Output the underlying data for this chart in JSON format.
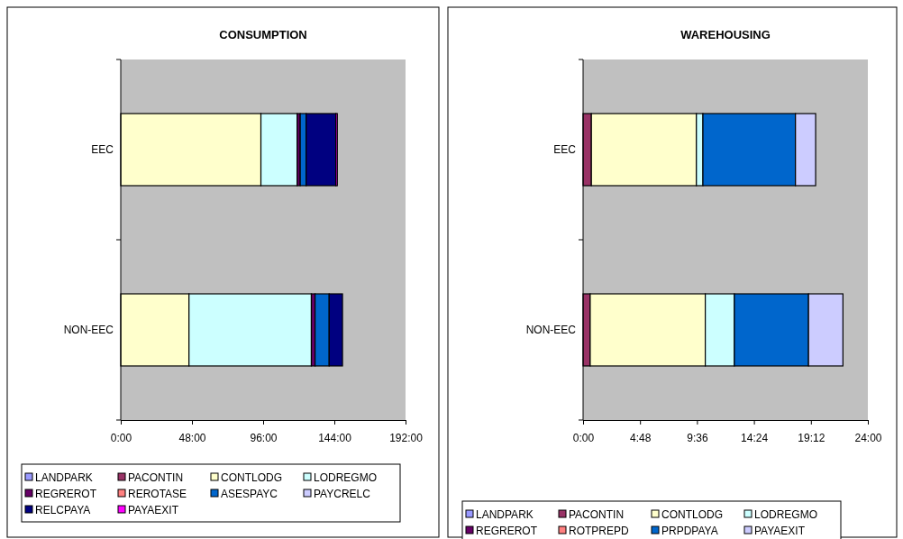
{
  "chart_data": [
    {
      "type": "bar",
      "title": "CONSUMPTION",
      "orientation": "horizontal",
      "stacked": true,
      "legend": "bottom",
      "grid": false,
      "categories": [
        "EEC",
        "NON-EEC"
      ],
      "xlim": [
        0,
        192
      ],
      "xticks": [
        {
          "value": 0,
          "label": "0:00"
        },
        {
          "value": 48,
          "label": "48:00"
        },
        {
          "value": 96,
          "label": "96:00"
        },
        {
          "value": 144,
          "label": "144:00"
        },
        {
          "value": 192,
          "label": "192:00"
        }
      ],
      "series": [
        {
          "name": "LANDPARK",
          "color": "#9999ff",
          "values": [
            null,
            null
          ]
        },
        {
          "name": "PACONTIN",
          "color": "#993366",
          "values": [
            null,
            null
          ]
        },
        {
          "name": "CONTLODG",
          "color": "#ffffcc",
          "values": [
            94.5,
            46
          ]
        },
        {
          "name": "LODREGMO",
          "color": "#ccffff",
          "values": [
            24.5,
            82.5
          ]
        },
        {
          "name": "REGREROT",
          "color": "#660066",
          "values": [
            2,
            2.5
          ]
        },
        {
          "name": "REROTASE",
          "color": "#ff8080",
          "values": [
            null,
            null
          ]
        },
        {
          "name": "ASESPAYC",
          "color": "#0066cc",
          "values": [
            4,
            9.5
          ]
        },
        {
          "name": "PAYCRELC",
          "color": "#ccccff",
          "values": [
            null,
            null
          ]
        },
        {
          "name": "RELCPAYA",
          "color": "#000080",
          "values": [
            20,
            9
          ]
        },
        {
          "name": "PAYAEXIT",
          "color": "#ff00ff",
          "values": [
            1,
            null
          ]
        }
      ]
    },
    {
      "type": "bar",
      "title": "WAREHOUSING",
      "orientation": "horizontal",
      "stacked": true,
      "legend": "bottom",
      "grid": false,
      "categories": [
        "EEC",
        "NON-EEC"
      ],
      "xlim": [
        0,
        24
      ],
      "xticks": [
        {
          "value": 0,
          "label": "0:00"
        },
        {
          "value": 4.8,
          "label": "4:48"
        },
        {
          "value": 9.6,
          "label": "9:36"
        },
        {
          "value": 14.4,
          "label": "14:24"
        },
        {
          "value": 19.2,
          "label": "19:12"
        },
        {
          "value": 24,
          "label": "24:00"
        }
      ],
      "series": [
        {
          "name": "LANDPARK",
          "color": "#9999ff",
          "values": [
            null,
            null
          ]
        },
        {
          "name": "PACONTIN",
          "color": "#993366",
          "values": [
            0.7,
            0.6
          ]
        },
        {
          "name": "CONTLODG",
          "color": "#ffffcc",
          "values": [
            8.85,
            9.7
          ]
        },
        {
          "name": "LODREGMO",
          "color": "#ccffff",
          "values": [
            0.55,
            2.45
          ]
        },
        {
          "name": "REGREROT",
          "color": "#660066",
          "values": [
            null,
            null
          ]
        },
        {
          "name": "ROTPREPD",
          "color": "#ff8080",
          "values": [
            null,
            null
          ]
        },
        {
          "name": "PRPDPAYA",
          "color": "#0066cc",
          "values": [
            7.8,
            6.25
          ]
        },
        {
          "name": "PAYAEXIT",
          "color": "#ccccff",
          "values": [
            1.7,
            2.9
          ]
        }
      ]
    }
  ]
}
